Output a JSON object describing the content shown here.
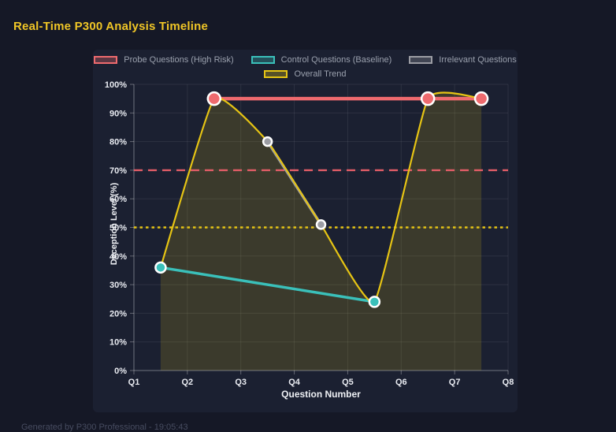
{
  "header": {
    "title": "Real-Time P300 Analysis Timeline"
  },
  "footer": {
    "text": "Generated by P300 Professional - 19:05:43"
  },
  "colors": {
    "page_bg": "#151826",
    "panel_bg": "#1b2031",
    "grid": "rgba(255,255,255,0.08)",
    "axis": "rgba(255,255,255,0.32)",
    "tick_label": "#e9ebf1",
    "legend_text": "#9ba1ae",
    "title_text": "#f0c626",
    "marker_ring": "#ffffff",
    "probe_red": "#ee6a6e",
    "control_teal": "#3ac0ba",
    "irrelevant_gray": "#9b9ca3",
    "trend_yellow": "#e6c414",
    "threshold_red": "#e25d67"
  },
  "chart_data": {
    "type": "line",
    "title": "Real-Time P300 Analysis Timeline",
    "xlabel": "Question Number",
    "ylabel": "Deception Level (%)",
    "x_ticks": [
      "Q1",
      "Q2",
      "Q3",
      "Q4",
      "Q5",
      "Q6",
      "Q7",
      "Q8"
    ],
    "x_range": [
      1,
      8
    ],
    "ylim": [
      0,
      100
    ],
    "y_tick_step": 10,
    "y_tick_suffix": "%",
    "grid": true,
    "legend_position": "top",
    "series": [
      {
        "name": "Probe Questions (High Risk)",
        "color": "#ee6a6e",
        "style": "line",
        "line_width": 4.5,
        "marker_radius": 8,
        "points": [
          {
            "x": 2.5,
            "y": 95
          },
          {
            "x": 6.5,
            "y": 95
          },
          {
            "x": 7.5,
            "y": 95
          }
        ]
      },
      {
        "name": "Control Questions (Baseline)",
        "color": "#3ac0ba",
        "style": "line",
        "line_width": 3.5,
        "marker_radius": 6.5,
        "points": [
          {
            "x": 1.5,
            "y": 36
          },
          {
            "x": 5.5,
            "y": 24
          }
        ]
      },
      {
        "name": "Irrelevant Questions",
        "color": "#9b9ca3",
        "style": "line",
        "line_width": 3.5,
        "marker_radius": 5.5,
        "points": [
          {
            "x": 3.5,
            "y": 80
          },
          {
            "x": 4.5,
            "y": 51
          }
        ]
      },
      {
        "name": "Overall Trend",
        "color": "#e6c414",
        "style": "smooth-line",
        "line_width": 2.2,
        "marker_radius": 0,
        "fill": true,
        "fill_opacity": 0.16,
        "points": [
          {
            "x": 1.5,
            "y": 36
          },
          {
            "x": 2.5,
            "y": 95
          },
          {
            "x": 3.5,
            "y": 80
          },
          {
            "x": 4.5,
            "y": 51
          },
          {
            "x": 5.5,
            "y": 24
          },
          {
            "x": 6.5,
            "y": 95
          },
          {
            "x": 7.5,
            "y": 95
          }
        ]
      }
    ],
    "threshold_lines": [
      {
        "value": 70,
        "color": "#e25d67",
        "style": "dashed"
      },
      {
        "value": 50,
        "color": "#e6c414",
        "style": "dotted"
      }
    ]
  }
}
